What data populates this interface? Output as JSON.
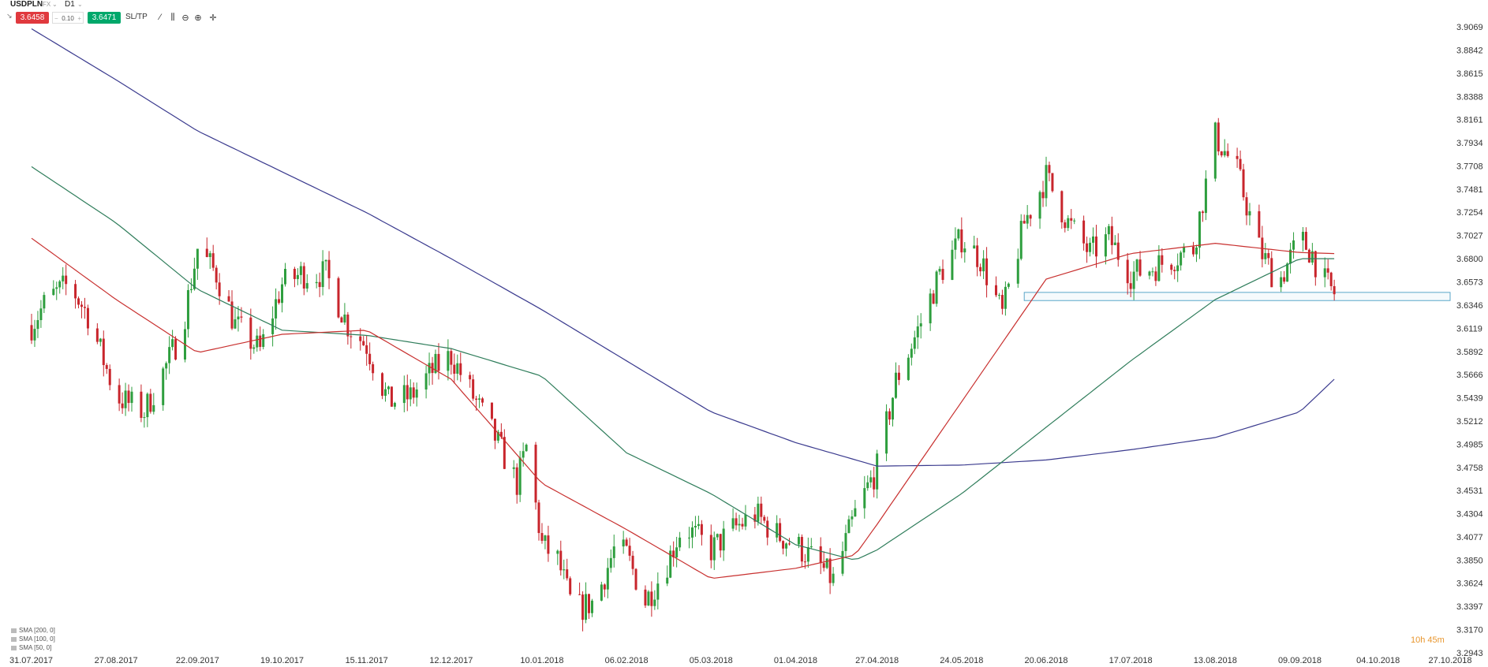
{
  "header": {
    "symbol": "USDPLN",
    "market": "FX",
    "timeframe": "D1"
  },
  "trade": {
    "sell_price": "3.6458",
    "quantity": "0.10",
    "buy_price": "3.6471",
    "sltp_label": "SL/TP"
  },
  "tools": [
    {
      "name": "line-style-icon",
      "glyph": "⁄"
    },
    {
      "name": "candles-icon",
      "glyph": "⫼"
    },
    {
      "name": "zoom-out-icon",
      "glyph": "⊖"
    },
    {
      "name": "zoom-in-icon",
      "glyph": "⊕"
    },
    {
      "name": "crosshair-icon",
      "glyph": "✛"
    }
  ],
  "legend": [
    "SMA [200, 0]",
    "SMA [100, 0]",
    "SMA [50, 0]"
  ],
  "countdown": "10h 45m",
  "colors": {
    "bull": "#2e9e3e",
    "bear": "#c8252c",
    "sma200": "#3a3a8e",
    "sma100": "#2f7d5b",
    "sma50": "#c8302f",
    "zone_border": "#5aa5c8"
  },
  "chart_data": {
    "type": "candlestick",
    "symbol": "USDPLN",
    "timeframe": "D1",
    "y_ticks": [
      "3.9069",
      "3.8842",
      "3.8615",
      "3.8388",
      "3.8161",
      "3.7934",
      "3.7708",
      "3.7481",
      "3.7254",
      "3.7027",
      "3.6800",
      "3.6573",
      "3.6346",
      "3.6119",
      "3.5892",
      "3.5666",
      "3.5439",
      "3.5212",
      "3.4985",
      "3.4758",
      "3.4531",
      "3.4304",
      "3.4077",
      "3.3850",
      "3.3624",
      "3.3397",
      "3.3170",
      "3.2943"
    ],
    "ylim": [
      3.2943,
      3.9069
    ],
    "x_ticks": [
      "31.07.2017",
      "27.08.2017",
      "22.09.2017",
      "19.10.2017",
      "15.11.2017",
      "12.12.2017",
      "10.01.2018",
      "06.02.2018",
      "05.03.2018",
      "01.04.2018",
      "27.04.2018",
      "24.05.2018",
      "20.06.2018",
      "17.07.2018",
      "13.08.2018",
      "09.09.2018",
      "04.10.2018",
      "27.10.2018"
    ],
    "close_path": [
      [
        "31.07.2017",
        3.615
      ],
      [
        "05.08.2017",
        3.64
      ],
      [
        "12.08.2017",
        3.655
      ],
      [
        "18.08.2017",
        3.625
      ],
      [
        "27.08.2017",
        3.545
      ],
      [
        "05.09.2017",
        3.53
      ],
      [
        "12.09.2017",
        3.575
      ],
      [
        "17.09.2017",
        3.61
      ],
      [
        "22.09.2017",
        3.69
      ],
      [
        "28.09.2017",
        3.665
      ],
      [
        "04.10.2017",
        3.615
      ],
      [
        "12.10.2017",
        3.59
      ],
      [
        "19.10.2017",
        3.655
      ],
      [
        "25.10.2017",
        3.665
      ],
      [
        "02.11.2017",
        3.665
      ],
      [
        "09.11.2017",
        3.615
      ],
      [
        "15.11.2017",
        3.595
      ],
      [
        "22.11.2017",
        3.54
      ],
      [
        "29.11.2017",
        3.545
      ],
      [
        "06.12.2017",
        3.57
      ],
      [
        "12.12.2017",
        3.585
      ],
      [
        "19.12.2017",
        3.545
      ],
      [
        "26.12.2017",
        3.505
      ],
      [
        "02.01.2018",
        3.46
      ],
      [
        "05.01.2018",
        3.495
      ],
      [
        "10.01.2018",
        3.4
      ],
      [
        "15.01.2018",
        3.385
      ],
      [
        "20.01.2018",
        3.335
      ],
      [
        "27.01.2018",
        3.345
      ],
      [
        "02.02.2018",
        3.395
      ],
      [
        "06.02.2018",
        3.39
      ],
      [
        "12.02.2018",
        3.345
      ],
      [
        "18.02.2018",
        3.375
      ],
      [
        "24.02.2018",
        3.42
      ],
      [
        "05.03.2018",
        3.395
      ],
      [
        "12.03.2018",
        3.415
      ],
      [
        "19.03.2018",
        3.43
      ],
      [
        "26.03.2018",
        3.41
      ],
      [
        "01.04.2018",
        3.4
      ],
      [
        "07.04.2018",
        3.385
      ],
      [
        "13.04.2018",
        3.365
      ],
      [
        "20.04.2018",
        3.43
      ],
      [
        "27.04.2018",
        3.475
      ],
      [
        "03.05.2018",
        3.56
      ],
      [
        "10.05.2018",
        3.61
      ],
      [
        "17.05.2018",
        3.665
      ],
      [
        "24.05.2018",
        3.7
      ],
      [
        "30.05.2018",
        3.68
      ],
      [
        "06.06.2018",
        3.625
      ],
      [
        "13.06.2018",
        3.715
      ],
      [
        "20.06.2018",
        3.76
      ],
      [
        "27.06.2018",
        3.715
      ],
      [
        "04.07.2018",
        3.685
      ],
      [
        "10.07.2018",
        3.7
      ],
      [
        "17.07.2018",
        3.665
      ],
      [
        "23.07.2018",
        3.67
      ],
      [
        "30.07.2018",
        3.68
      ],
      [
        "06.08.2018",
        3.69
      ],
      [
        "13.08.2018",
        3.8
      ],
      [
        "20.08.2018",
        3.765
      ],
      [
        "27.08.2018",
        3.69
      ],
      [
        "02.09.2018",
        3.655
      ],
      [
        "09.09.2018",
        3.7
      ],
      [
        "13.09.2018",
        3.685
      ],
      [
        "16.09.2018",
        3.66
      ],
      [
        "20.09.2018",
        3.646
      ]
    ],
    "series": [
      {
        "name": "SMA [200, 0]",
        "points": [
          [
            "31.07.2017",
            3.905
          ],
          [
            "27.08.2017",
            3.855
          ],
          [
            "22.09.2017",
            3.805
          ],
          [
            "19.10.2017",
            3.765
          ],
          [
            "15.11.2017",
            3.725
          ],
          [
            "12.12.2017",
            3.68
          ],
          [
            "10.01.2018",
            3.63
          ],
          [
            "06.02.2018",
            3.58
          ],
          [
            "05.03.2018",
            3.53
          ],
          [
            "01.04.2018",
            3.5
          ],
          [
            "27.04.2018",
            3.477
          ],
          [
            "24.05.2018",
            3.478
          ],
          [
            "20.06.2018",
            3.483
          ],
          [
            "17.07.2018",
            3.493
          ],
          [
            "13.08.2018",
            3.505
          ],
          [
            "09.09.2018",
            3.53
          ],
          [
            "20.09.2018",
            3.562
          ]
        ]
      },
      {
        "name": "SMA [100, 0]",
        "points": [
          [
            "31.07.2017",
            3.77
          ],
          [
            "27.08.2017",
            3.715
          ],
          [
            "22.09.2017",
            3.65
          ],
          [
            "19.10.2017",
            3.61
          ],
          [
            "15.11.2017",
            3.605
          ],
          [
            "12.12.2017",
            3.592
          ],
          [
            "10.01.2018",
            3.565
          ],
          [
            "06.02.2018",
            3.49
          ],
          [
            "05.03.2018",
            3.45
          ],
          [
            "01.04.2018",
            3.4
          ],
          [
            "20.04.2018",
            3.385
          ],
          [
            "27.04.2018",
            3.395
          ],
          [
            "24.05.2018",
            3.45
          ],
          [
            "20.06.2018",
            3.515
          ],
          [
            "17.07.2018",
            3.58
          ],
          [
            "13.08.2018",
            3.64
          ],
          [
            "09.09.2018",
            3.68
          ],
          [
            "20.09.2018",
            3.68
          ]
        ]
      },
      {
        "name": "SMA [50, 0]",
        "points": [
          [
            "31.07.2017",
            3.7
          ],
          [
            "27.08.2017",
            3.64
          ],
          [
            "22.09.2017",
            3.588
          ],
          [
            "19.10.2017",
            3.606
          ],
          [
            "15.11.2017",
            3.61
          ],
          [
            "12.12.2017",
            3.562
          ],
          [
            "10.01.2018",
            3.46
          ],
          [
            "06.02.2018",
            3.415
          ],
          [
            "05.03.2018",
            3.367
          ],
          [
            "01.04.2018",
            3.377
          ],
          [
            "20.04.2018",
            3.39
          ],
          [
            "27.04.2018",
            3.42
          ],
          [
            "24.05.2018",
            3.54
          ],
          [
            "20.06.2018",
            3.66
          ],
          [
            "17.07.2018",
            3.685
          ],
          [
            "13.08.2018",
            3.695
          ],
          [
            "09.09.2018",
            3.686
          ],
          [
            "20.09.2018",
            3.685
          ]
        ]
      }
    ],
    "zone": {
      "from": "13.06.2018",
      "to": "27.10.2018",
      "low": 3.639,
      "high": 3.647
    },
    "grid": false,
    "legend_position": "bottom-left"
  }
}
